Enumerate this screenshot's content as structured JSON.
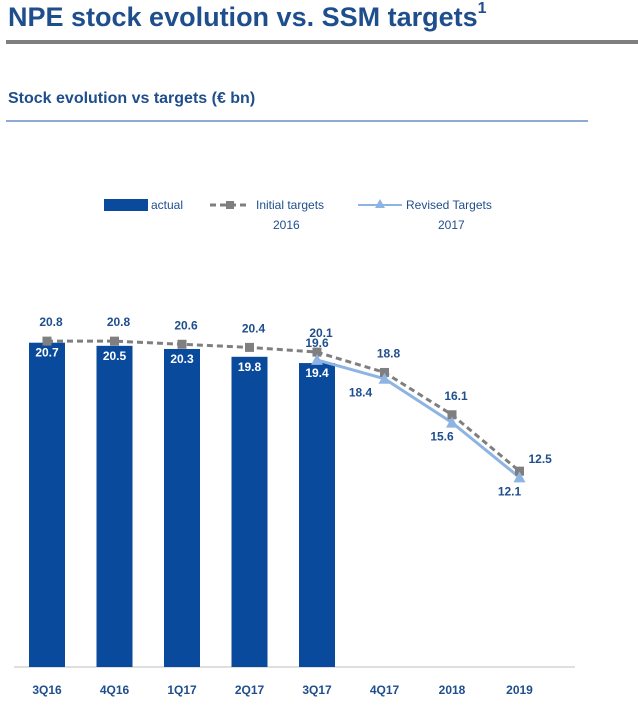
{
  "header": {
    "title": "NPE stock evolution vs. SSM targets",
    "title_footnote": "1",
    "subtitle": "Stock evolution vs targets (€ bn)"
  },
  "legend": {
    "actual": "actual",
    "initial_line1": "Initial targets",
    "initial_line2": "2016",
    "revised_line1": "Revised Targets",
    "revised_line2": "2017"
  },
  "colors": {
    "bar": "#0a4a9c",
    "initial": "#7f7f7f",
    "revised": "#8db4e2",
    "text": "#1f4e8c"
  },
  "chart_data": {
    "type": "bar",
    "title": "Stock evolution vs targets (€ bn)",
    "categories": [
      "3Q16",
      "4Q16",
      "1Q17",
      "2Q17",
      "3Q17",
      "4Q17",
      "2018",
      "2019"
    ],
    "ylim": [
      0,
      30
    ],
    "series": [
      {
        "name": "actual",
        "kind": "bar",
        "values": [
          20.7,
          20.5,
          20.3,
          19.8,
          19.4,
          null,
          null,
          null
        ]
      },
      {
        "name": "Initial targets 2016",
        "kind": "line-dashed-square",
        "values": [
          20.8,
          20.8,
          20.6,
          20.4,
          20.1,
          18.8,
          16.1,
          12.5
        ]
      },
      {
        "name": "Revised Targets 2017",
        "kind": "line-triangle",
        "values": [
          null,
          null,
          null,
          null,
          19.6,
          18.4,
          15.6,
          12.1
        ]
      }
    ]
  }
}
